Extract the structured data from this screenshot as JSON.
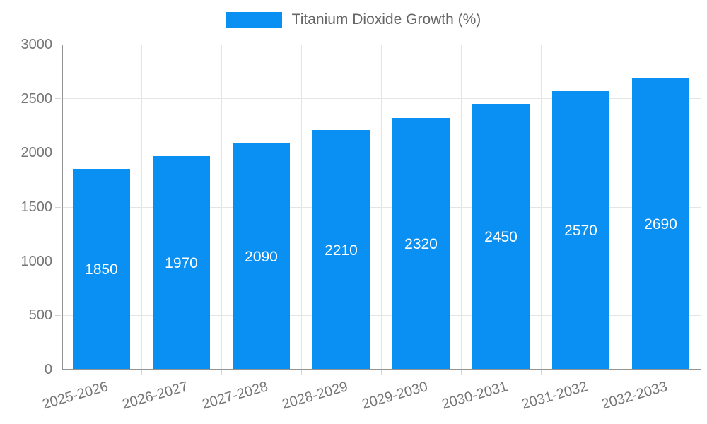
{
  "chart_data": {
    "type": "bar",
    "title": "",
    "legend_label": "Titanium Dioxide Growth (%)",
    "legend_position": "top-center",
    "categories": [
      "2025-2026",
      "2026-2027",
      "2027-2028",
      "2028-2029",
      "2029-2030",
      "2030-2031",
      "2031-2032",
      "2032-2033"
    ],
    "values": [
      1850,
      1970,
      2090,
      2210,
      2320,
      2450,
      2570,
      2690
    ],
    "xlabel": "",
    "ylabel": "",
    "ylim": [
      0,
      3000
    ],
    "yticks": [
      0,
      500,
      1000,
      1500,
      2000,
      2500,
      3000
    ],
    "grid": true,
    "bar_color": "#0a90f2",
    "value_label_color": "#ffffff",
    "axis_text_color": "#757575",
    "legend_text_color": "#666666",
    "gridline_color": "#e5e5e5",
    "axis_line_color": "#949494"
  }
}
